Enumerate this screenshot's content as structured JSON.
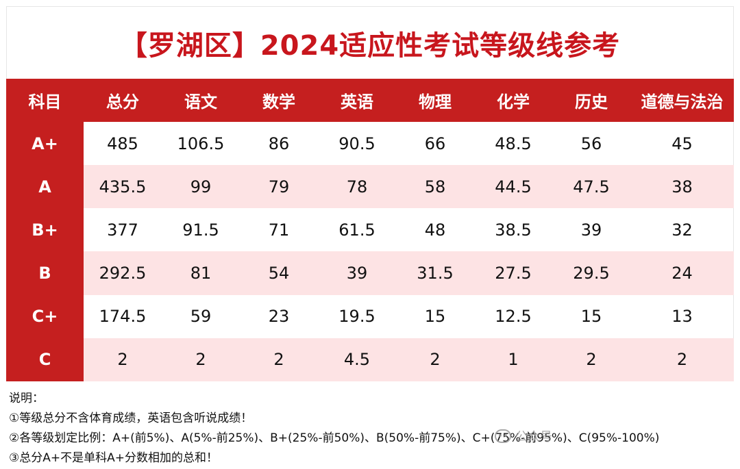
{
  "title": "【罗湖区】2024适应性考试等级线参考",
  "table": {
    "headers": [
      "科目",
      "总分",
      "语文",
      "数学",
      "英语",
      "物理",
      "化学",
      "历史",
      "道德与法治"
    ],
    "rows": [
      {
        "grade": "A+",
        "values": [
          "485",
          "106.5",
          "86",
          "90.5",
          "66",
          "48.5",
          "56",
          "45"
        ]
      },
      {
        "grade": "A",
        "values": [
          "435.5",
          "99",
          "79",
          "78",
          "58",
          "44.5",
          "47.5",
          "38"
        ]
      },
      {
        "grade": "B+",
        "values": [
          "377",
          "91.5",
          "71",
          "61.5",
          "48",
          "38.5",
          "39",
          "32"
        ]
      },
      {
        "grade": "B",
        "values": [
          "292.5",
          "81",
          "54",
          "39",
          "31.5",
          "27.5",
          "29.5",
          "24"
        ]
      },
      {
        "grade": "C+",
        "values": [
          "174.5",
          "59",
          "23",
          "19.5",
          "15",
          "12.5",
          "15",
          "13"
        ]
      },
      {
        "grade": "C",
        "values": [
          "2",
          "2",
          "2",
          "4.5",
          "2",
          "1",
          "2",
          "2"
        ]
      }
    ]
  },
  "notes": {
    "heading": "说明：",
    "line1": "①等级总分不含体育成绩，英语包含听说成绩！",
    "line2": "②各等级划定比例：A+(前5%)、A(5%-前25%)、B+(25%-前50%)、B(50%-前75%)、C+(75%-前95%)、C(95%-100%)",
    "line3": "③总分A+不是单科A+分数相加的总和！"
  },
  "watermark": {
    "text": "公众号"
  },
  "colors": {
    "accent": "#c51f1f",
    "title": "#c8161d",
    "alt_row": "#fde3e4"
  }
}
